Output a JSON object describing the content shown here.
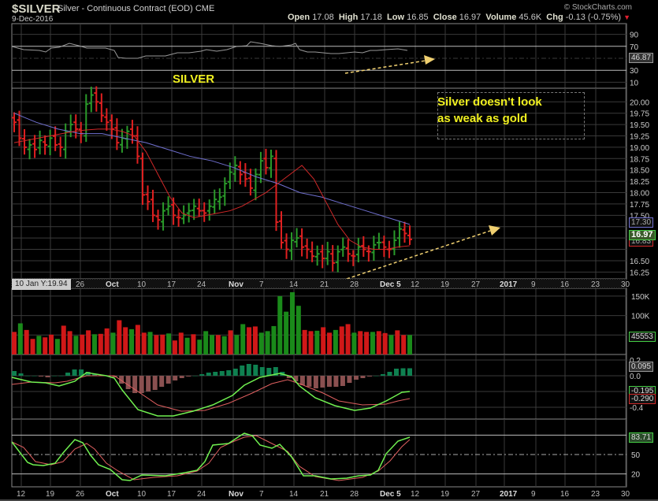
{
  "header": {
    "symbol": "$SILVER",
    "subtitle": "Silver - Continuous Contract (EOD) CME",
    "date": "9-Dec-2016",
    "copyright": "© StockCharts.com",
    "open_label": "Open",
    "open": "17.08",
    "high_label": "High",
    "high": "17.18",
    "low_label": "Low",
    "low": "16.85",
    "close_label": "Close",
    "close": "16.97",
    "volume_label": "Volume",
    "volume": "45.6K",
    "chg_label": "Chg",
    "chg": "-0.13 (-0.75%)",
    "chg_arrow": "▼"
  },
  "annotations": {
    "silver_label": "SILVER",
    "note_line1": "Silver doesn't look",
    "note_line2": "as weak as gold",
    "cursor_date": "10 Jan Y:19.94"
  },
  "tags": {
    "rsi": "46.87",
    "ma50": "17.30",
    "close": "16.97",
    "ma20": "16.83",
    "volume": "45553",
    "macd_hist": "0.095",
    "macd": "-0.195",
    "signal": "-0.290",
    "stoch": "83.71"
  },
  "colors": {
    "up": "#2a9a2a",
    "down": "#e02020",
    "ma_short": "#d02828",
    "ma_long": "#7070d0",
    "grid": "#3a3a3a",
    "annotation": "#f0f020",
    "arrow": "#f0d070",
    "macd_up": "#0f8050",
    "macd_down": "#8a5050"
  },
  "chart_data": [
    {
      "type": "bar",
      "title": "$SILVER Silver - Continuous Contract (EOD) CME — OHLC price",
      "ylabel": "Price",
      "ylim": [
        16.1,
        20.3
      ],
      "yticks": [
        "20.00",
        "19.75",
        "19.50",
        "19.25",
        "19.00",
        "18.75",
        "18.50",
        "18.25",
        "18.00",
        "17.75",
        "17.50",
        "17.25",
        "17.00",
        "16.75",
        "16.50",
        "16.25"
      ],
      "xticks": [
        "12",
        "19",
        "26",
        "Oct",
        "10",
        "17",
        "24",
        "Nov",
        "7",
        "14",
        "21",
        "28",
        "Dec 5",
        "12",
        "19",
        "27",
        "2017",
        "9",
        "16",
        "23",
        "30"
      ],
      "series": [
        {
          "name": "Close",
          "values": [
            19.55,
            19.2,
            19.0,
            19.05,
            18.95,
            19.15,
            19.05,
            19.2,
            19.05,
            19.0,
            19.35,
            19.5,
            19.4,
            19.3,
            19.95,
            20.15,
            20.0,
            19.7,
            19.55,
            19.4,
            19.1,
            19.2,
            19.35,
            19.25,
            18.8,
            17.95,
            17.8,
            17.5,
            17.4,
            17.6,
            17.7,
            17.5,
            17.45,
            17.5,
            17.6,
            17.7,
            17.6,
            17.55,
            17.7,
            17.85,
            17.9,
            18.2,
            18.45,
            18.6,
            18.4,
            18.3,
            18.1,
            18.4,
            18.7,
            18.55,
            18.8,
            17.35,
            16.9,
            16.75,
            16.95,
            17.0,
            16.8,
            16.75,
            16.6,
            16.65,
            16.55,
            16.7,
            16.45,
            16.7,
            16.8,
            16.65,
            16.6,
            16.8,
            16.75,
            16.7,
            16.85,
            16.9,
            16.8,
            16.75,
            16.95,
            17.2,
            17.1,
            16.97
          ]
        },
        {
          "name": "MA20",
          "values": [
            19.1,
            19.15,
            19.2,
            19.25,
            19.3,
            19.35,
            19.38,
            19.4,
            19.4,
            19.35,
            19.25,
            18.9,
            18.4,
            17.9,
            17.55,
            17.45,
            17.5,
            17.55,
            17.6,
            17.7,
            17.85,
            18.0,
            18.2,
            18.4,
            18.6,
            18.3,
            17.8,
            17.3,
            16.95,
            16.8,
            16.75,
            16.75,
            16.8,
            16.83
          ]
        },
        {
          "name": "MA50",
          "values": [
            19.75,
            19.55,
            19.4,
            19.3,
            19.3,
            19.2,
            19.1,
            18.95,
            18.8,
            18.7,
            18.55,
            18.35,
            18.2,
            18.0,
            17.9,
            17.75,
            17.6,
            17.45,
            17.3
          ]
        }
      ]
    },
    {
      "type": "line",
      "title": "RSI(14)",
      "ylim": [
        0,
        100
      ],
      "yticks": [
        "90",
        "70",
        "50",
        "30",
        "10"
      ],
      "reference_lines": [
        70,
        50,
        30
      ],
      "last_value": 46.87
    },
    {
      "type": "bar",
      "title": "Volume",
      "ylim": [
        0,
        170000
      ],
      "yticks": [
        "150K",
        "100K"
      ],
      "values": [
        58000,
        80000,
        63000,
        40000,
        48000,
        44000,
        51000,
        40000,
        74000,
        60000,
        48000,
        51000,
        62000,
        52000,
        53000,
        67000,
        56000,
        88000,
        70000,
        65000,
        76000,
        56000,
        58000,
        50000,
        51000,
        54000,
        36000,
        56000,
        43000,
        52000,
        38000,
        60000,
        50000,
        50000,
        47000,
        62000,
        50000,
        78000,
        70000,
        72000,
        56000,
        60000,
        73000,
        150000,
        110000,
        160000,
        125000,
        63000,
        60000,
        61000,
        70000,
        56000,
        63000,
        72000,
        78000,
        56000,
        60000,
        58000,
        58000,
        60000,
        55000,
        50000,
        62000,
        50000,
        50000
      ],
      "last_value": 45553
    },
    {
      "type": "line",
      "title": "MACD",
      "ylim": [
        -0.55,
        0.25
      ],
      "yticks": [
        "0.2",
        "0.0",
        "-0.4"
      ],
      "series": [
        {
          "name": "MACD",
          "last": -0.195
        },
        {
          "name": "Signal",
          "last": -0.29
        },
        {
          "name": "Histogram",
          "last": 0.095
        }
      ]
    },
    {
      "type": "line",
      "title": "Slow Stochastic",
      "ylim": [
        0,
        100
      ],
      "yticks": [
        "50",
        "20"
      ],
      "reference_lines": [
        80,
        50,
        20
      ],
      "last_value": 83.71
    }
  ]
}
